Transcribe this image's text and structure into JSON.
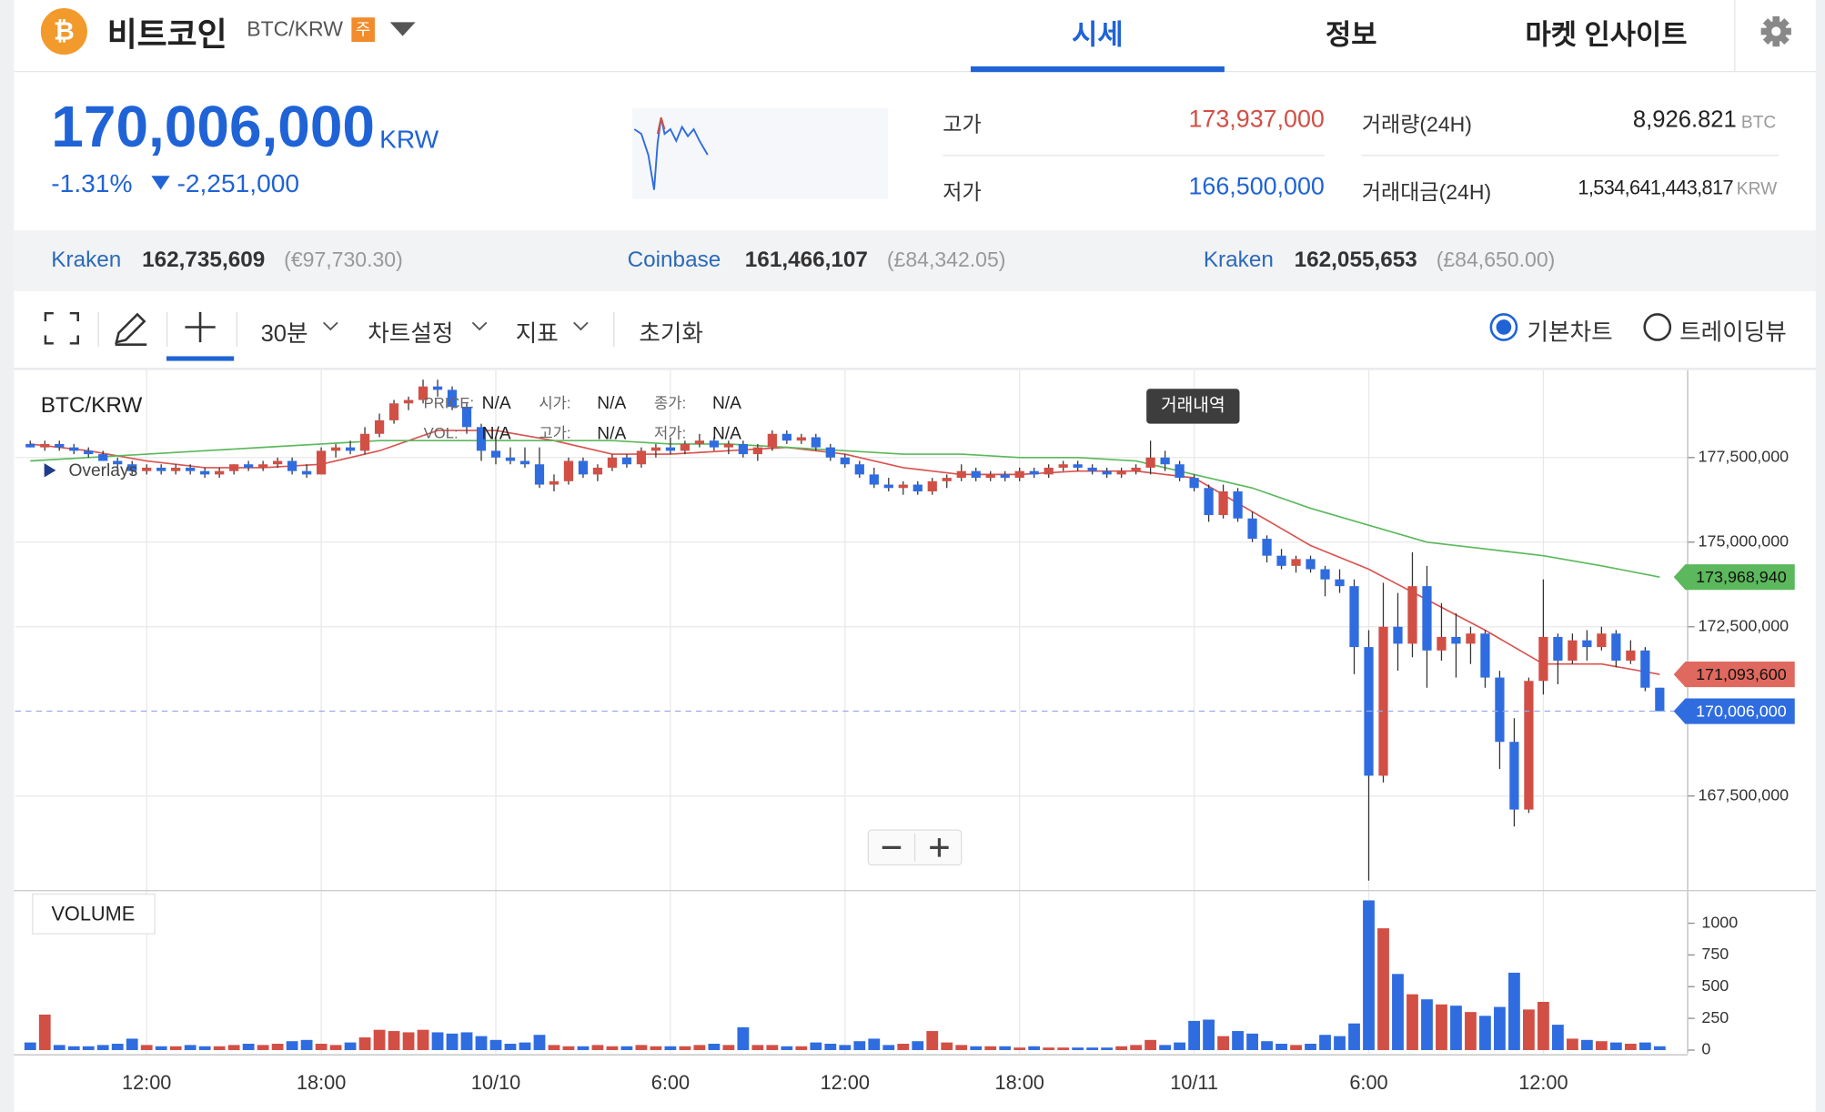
{
  "header": {
    "title": "비트코인",
    "pair": "BTC/KRW",
    "badge": "주",
    "tabs": [
      "시세",
      "정보",
      "마켓 인사이트"
    ]
  },
  "ticker": {
    "price": "170,006,000",
    "unit": "KRW",
    "change_rate": "-1.31%",
    "change": "-2,251,000",
    "stats": [
      {
        "label": "고가",
        "value": "173,937,000"
      },
      {
        "label": "저가",
        "value": "166,500,000"
      },
      {
        "label": "거래량(24H)",
        "value": "8,926.821",
        "unit": "BTC"
      },
      {
        "label": "거래대금(24H)",
        "value": "1,534,641,443,817",
        "unit": "KRW"
      }
    ]
  },
  "exchanges": [
    {
      "name": "Kraken",
      "price": "162,735,609",
      "foreign": "(€97,730.30)"
    },
    {
      "name": "Coinbase",
      "price": "161,466,107",
      "foreign": "(£84,342.05)"
    },
    {
      "name": "Kraken",
      "price": "162,055,653",
      "foreign": "(£84,650.00)"
    }
  ],
  "toolbar": {
    "interval": "30분",
    "settings": "차트설정",
    "indicators": "지표",
    "reset": "초기화",
    "views": [
      "기본차트",
      "트레이딩뷰"
    ]
  },
  "chart_data": {
    "type": "candlestick",
    "title": "BTC/KRW",
    "overlays": "Overlays",
    "tooltip": "거래내역",
    "info_labels": [
      [
        "PRICE:",
        "N/A",
        "시가:",
        "N/A",
        "종가:",
        "N/A"
      ],
      [
        "VOL:",
        "N/A",
        "고가:",
        "N/A",
        "저가:",
        "N/A"
      ]
    ],
    "up_color": "#d24f45",
    "down_color": "#2f6ce0",
    "x": [
      8,
      8.5,
      9,
      9.5,
      10,
      10.5,
      11,
      11.5,
      12,
      12.5,
      13,
      13.5,
      14,
      14.5,
      15,
      15.5,
      16,
      16.5,
      17,
      17.5,
      18,
      18.5,
      19,
      19.5,
      20,
      20.5,
      21,
      21.5,
      22,
      22.5,
      23,
      23.5,
      24,
      24.5,
      25,
      25.5,
      26,
      26.5,
      27,
      27.5,
      28,
      28.5,
      29,
      29.5,
      30,
      30.5,
      31,
      31.5,
      32,
      32.5,
      33,
      33.5,
      34,
      34.5,
      35,
      35.5,
      36,
      36.5,
      37,
      37.5,
      38,
      38.5,
      39,
      39.5,
      40,
      40.5,
      41,
      41.5,
      42,
      42.5,
      43,
      43.5,
      44,
      44.5,
      45,
      45.5,
      46,
      46.5,
      47,
      47.5,
      48,
      48.5,
      49,
      49.5,
      50,
      50.5,
      51,
      51.5,
      52,
      52.5,
      53,
      53.5,
      54,
      54.5,
      55,
      55.5,
      56,
      56.5,
      57,
      57.5,
      58,
      58.5,
      59,
      59.5,
      60,
      60.5,
      61,
      61.5,
      62,
      62.5,
      63,
      63.5,
      64
    ],
    "ohlc": [
      [
        177900000,
        178000000,
        177800000,
        177800000
      ],
      [
        177800000,
        178000000,
        177700000,
        177900000
      ],
      [
        177900000,
        178000000,
        177700000,
        177800000
      ],
      [
        177800000,
        177900000,
        177600000,
        177700000
      ],
      [
        177700000,
        177800000,
        177500000,
        177600000
      ],
      [
        177600000,
        177700000,
        177400000,
        177400000
      ],
      [
        177400000,
        177500000,
        177200000,
        177300000
      ],
      [
        177300000,
        177400000,
        177000000,
        177100000
      ],
      [
        177100000,
        177300000,
        177000000,
        177200000
      ],
      [
        177200000,
        177300000,
        177000000,
        177100000
      ],
      [
        177100000,
        177300000,
        177000000,
        177200000
      ],
      [
        177200000,
        177300000,
        177000000,
        177100000
      ],
      [
        177100000,
        177200000,
        176900000,
        177000000
      ],
      [
        177000000,
        177200000,
        176900000,
        177100000
      ],
      [
        177100000,
        177300000,
        177000000,
        177300000
      ],
      [
        177300000,
        177400000,
        177100000,
        177200000
      ],
      [
        177200000,
        177400000,
        177100000,
        177300000
      ],
      [
        177300000,
        177500000,
        177200000,
        177400000
      ],
      [
        177400000,
        177500000,
        177000000,
        177100000
      ],
      [
        177100000,
        177300000,
        176900000,
        177000000
      ],
      [
        177000000,
        177800000,
        177000000,
        177700000
      ],
      [
        177700000,
        177900000,
        177500000,
        177800000
      ],
      [
        177800000,
        178000000,
        177600000,
        177700000
      ],
      [
        177700000,
        178400000,
        177600000,
        178200000
      ],
      [
        178200000,
        178800000,
        178100000,
        178600000
      ],
      [
        178600000,
        179200000,
        178500000,
        179100000
      ],
      [
        179100000,
        179300000,
        178900000,
        179200000
      ],
      [
        179200000,
        179800000,
        179100000,
        179600000
      ],
      [
        179600000,
        179800000,
        179300000,
        179500000
      ],
      [
        179500000,
        179600000,
        178900000,
        179000000
      ],
      [
        179000000,
        179100000,
        178200000,
        178400000
      ],
      [
        178400000,
        178500000,
        177400000,
        177700000
      ],
      [
        177700000,
        178100000,
        177300000,
        177500000
      ],
      [
        177500000,
        177800000,
        177300000,
        177400000
      ],
      [
        177400000,
        177800000,
        177200000,
        177300000
      ],
      [
        177300000,
        177800000,
        176600000,
        176700000
      ],
      [
        176700000,
        177000000,
        176500000,
        176800000
      ],
      [
        176800000,
        177500000,
        176700000,
        177400000
      ],
      [
        177400000,
        177500000,
        176900000,
        177000000
      ],
      [
        177000000,
        177300000,
        176800000,
        177200000
      ],
      [
        177200000,
        177600000,
        177100000,
        177500000
      ],
      [
        177500000,
        177600000,
        177200000,
        177300000
      ],
      [
        177300000,
        177800000,
        177200000,
        177700000
      ],
      [
        177700000,
        177900000,
        177500000,
        177800000
      ],
      [
        177800000,
        178100000,
        177600000,
        177700000
      ],
      [
        177700000,
        178000000,
        177600000,
        177900000
      ],
      [
        177900000,
        178200000,
        177800000,
        178000000
      ],
      [
        178000000,
        178100000,
        177700000,
        177800000
      ],
      [
        177800000,
        178000000,
        177600000,
        177900000
      ],
      [
        177900000,
        178000000,
        177500000,
        177600000
      ],
      [
        177600000,
        177900000,
        177400000,
        177800000
      ],
      [
        177800000,
        178300000,
        177700000,
        178200000
      ],
      [
        178200000,
        178300000,
        177900000,
        178000000
      ],
      [
        178000000,
        178200000,
        177900000,
        178100000
      ],
      [
        178100000,
        178200000,
        177700000,
        177800000
      ],
      [
        177800000,
        177900000,
        177400000,
        177500000
      ],
      [
        177500000,
        177600000,
        177200000,
        177300000
      ],
      [
        177300000,
        177400000,
        176900000,
        177000000
      ],
      [
        177000000,
        177200000,
        176600000,
        176700000
      ],
      [
        176700000,
        176900000,
        176500000,
        176600000
      ],
      [
        176600000,
        176800000,
        176400000,
        176700000
      ],
      [
        176700000,
        176800000,
        176400000,
        176500000
      ],
      [
        176500000,
        176900000,
        176400000,
        176800000
      ],
      [
        176800000,
        177000000,
        176600000,
        176900000
      ],
      [
        176900000,
        177300000,
        176800000,
        177100000
      ],
      [
        177100000,
        177200000,
        176800000,
        176900000
      ],
      [
        176900000,
        177100000,
        176800000,
        177000000
      ],
      [
        177000000,
        177100000,
        176800000,
        176900000
      ],
      [
        176900000,
        177200000,
        176800000,
        177100000
      ],
      [
        177100000,
        177200000,
        176900000,
        177000000
      ],
      [
        177000000,
        177300000,
        176900000,
        177200000
      ],
      [
        177200000,
        177400000,
        177100000,
        177300000
      ],
      [
        177300000,
        177400000,
        177100000,
        177200000
      ],
      [
        177200000,
        177300000,
        177000000,
        177100000
      ],
      [
        177100000,
        177200000,
        176900000,
        177000000
      ],
      [
        177000000,
        177200000,
        176900000,
        177100000
      ],
      [
        177100000,
        177300000,
        177000000,
        177200000
      ],
      [
        177200000,
        178000000,
        177000000,
        177500000
      ],
      [
        177500000,
        177700000,
        177100000,
        177300000
      ],
      [
        177300000,
        177400000,
        176800000,
        176900000
      ],
      [
        176900000,
        177000000,
        176500000,
        176600000
      ],
      [
        176600000,
        176700000,
        175600000,
        175800000
      ],
      [
        175800000,
        176700000,
        175700000,
        176500000
      ],
      [
        176500000,
        176600000,
        175600000,
        175700000
      ],
      [
        175700000,
        175900000,
        175000000,
        175100000
      ],
      [
        175100000,
        175200000,
        174400000,
        174600000
      ],
      [
        174600000,
        174800000,
        174200000,
        174300000
      ],
      [
        174300000,
        174600000,
        174100000,
        174500000
      ],
      [
        174500000,
        174600000,
        174100000,
        174200000
      ],
      [
        174200000,
        174300000,
        173400000,
        173900000
      ],
      [
        173900000,
        174200000,
        173500000,
        173700000
      ],
      [
        173700000,
        173900000,
        171100000,
        171900000
      ],
      [
        171900000,
        172400000,
        165000000,
        168100000
      ],
      [
        168100000,
        173800000,
        167900000,
        172500000
      ],
      [
        172500000,
        173500000,
        171200000,
        172000000
      ],
      [
        172000000,
        174700000,
        171600000,
        173700000
      ],
      [
        173700000,
        174300000,
        170700000,
        171800000
      ],
      [
        171800000,
        173200000,
        171500000,
        172200000
      ],
      [
        172200000,
        172900000,
        171000000,
        172000000
      ],
      [
        172000000,
        172500000,
        171400000,
        172300000
      ],
      [
        172300000,
        172400000,
        170700000,
        171000000
      ],
      [
        171000000,
        171200000,
        168300000,
        169100000
      ],
      [
        169100000,
        169800000,
        166600000,
        167100000
      ],
      [
        167100000,
        171000000,
        167000000,
        170900000
      ],
      [
        170900000,
        173900000,
        170500000,
        172200000
      ],
      [
        172200000,
        172300000,
        170800000,
        171500000
      ],
      [
        171500000,
        172300000,
        171400000,
        172100000
      ],
      [
        172100000,
        172400000,
        171500000,
        171900000
      ],
      [
        171900000,
        172500000,
        171800000,
        172300000
      ],
      [
        172300000,
        172400000,
        171300000,
        171500000
      ],
      [
        171500000,
        172100000,
        171400000,
        171800000
      ],
      [
        171800000,
        171900000,
        170600000,
        170700000
      ],
      [
        170700000,
        170700000,
        170000000,
        170006000
      ]
    ],
    "volume_title": "VOLUME",
    "volume": [
      60,
      280,
      40,
      30,
      30,
      40,
      50,
      90,
      40,
      30,
      30,
      40,
      30,
      30,
      40,
      50,
      40,
      50,
      70,
      80,
      50,
      40,
      60,
      100,
      160,
      150,
      140,
      160,
      140,
      130,
      140,
      110,
      80,
      50,
      60,
      120,
      40,
      30,
      30,
      40,
      30,
      30,
      40,
      30,
      30,
      30,
      40,
      50,
      40,
      180,
      40,
      40,
      30,
      30,
      60,
      50,
      40,
      70,
      90,
      40,
      50,
      70,
      150,
      60,
      40,
      30,
      30,
      30,
      20,
      30,
      20,
      20,
      20,
      20,
      20,
      30,
      40,
      80,
      40,
      60,
      230,
      240,
      110,
      150,
      130,
      70,
      50,
      40,
      50,
      120,
      110,
      210,
      1180,
      960,
      600,
      440,
      400,
      360,
      350,
      300,
      270,
      340,
      610,
      320,
      380,
      200,
      90,
      80,
      70,
      60,
      50,
      60,
      30
    ],
    "moving_averages": [
      {
        "color": "#d9534f",
        "x": [
          8,
          10,
          12,
          14,
          16,
          18,
          20,
          22,
          24,
          26,
          28,
          30,
          32,
          34,
          36,
          38,
          40,
          42,
          44,
          46,
          48,
          50,
          52,
          54,
          56,
          58,
          60,
          62,
          64
        ],
        "values": [
          177900000,
          177700000,
          177400000,
          177200000,
          177200000,
          177300000,
          177700000,
          178300000,
          178300000,
          178000000,
          177600000,
          177600000,
          177700000,
          177800000,
          177600000,
          177200000,
          177000000,
          177000000,
          177100000,
          177100000,
          176900000,
          175900000,
          174900000,
          174200000,
          173300000,
          172400000,
          171400000,
          171400000,
          171093600
        ]
      },
      {
        "color": "#5cb85c",
        "x": [
          8,
          10,
          12,
          14,
          16,
          18,
          20,
          22,
          24,
          26,
          28,
          30,
          32,
          34,
          36,
          38,
          40,
          42,
          44,
          46,
          48,
          50,
          52,
          54,
          56,
          58,
          60,
          62,
          64
        ],
        "values": [
          177400000,
          177500000,
          177600000,
          177700000,
          177800000,
          177900000,
          178000000,
          178000000,
          178000000,
          178000000,
          178000000,
          177900000,
          177900000,
          177800000,
          177700000,
          177600000,
          177600000,
          177500000,
          177500000,
          177400000,
          177000000,
          176600000,
          176000000,
          175500000,
          175000000,
          174800000,
          174600000,
          174300000,
          173968940
        ]
      }
    ],
    "price_tags": [
      {
        "value": 173968940,
        "label": "173,968,940",
        "color": "#5cb85c",
        "text_color": "#111111"
      },
      {
        "value": 171093600,
        "label": "171,093,600",
        "color": "#e0695f",
        "text_color": "#111111"
      },
      {
        "value": 170006000,
        "label": "170,006,000",
        "color": "#2f6ce0",
        "text_color": "#ffffff",
        "line": "dashed"
      }
    ],
    "xlim": [
      7.48,
      64.96
    ],
    "xticks": [
      {
        "value": 12,
        "label": "12:00"
      },
      {
        "value": 18,
        "label": "18:00"
      },
      {
        "value": 24,
        "label": "10/10"
      },
      {
        "value": 30,
        "label": "6:00"
      },
      {
        "value": 36,
        "label": "12:00"
      },
      {
        "value": 42,
        "label": "18:00"
      },
      {
        "value": 48,
        "label": "10/11"
      },
      {
        "value": 54,
        "label": "6:00"
      },
      {
        "value": 60,
        "label": "12:00"
      }
    ],
    "ylim": [
      164740000,
      180080000
    ],
    "yticks": [
      {
        "value": 167500000,
        "label": "167,500,000"
      },
      {
        "value": 172500000,
        "label": "172,500,000"
      },
      {
        "value": 175000000,
        "label": "175,000,000"
      },
      {
        "value": 177500000,
        "label": "177,500,000"
      }
    ],
    "vlim": [
      0,
      1248
    ],
    "vticks": [
      0,
      250,
      500,
      750,
      1000
    ],
    "grid": true
  }
}
